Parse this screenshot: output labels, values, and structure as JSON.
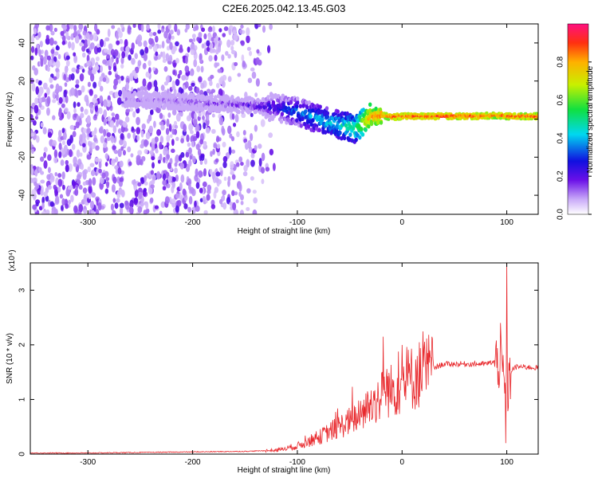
{
  "figure": {
    "title": "C2E6.2025.042.13.45.G03"
  },
  "colors": {
    "snr_line": "#e8262a",
    "spectrum_low": "#dcd0f4",
    "spectrum_mid": "#8a3cf0",
    "spectrum_core": "#1a1ad8"
  },
  "chart_data": [
    {
      "type": "heatmap",
      "xlabel": "Height of straight line (km)",
      "ylabel": "Frequency (Hz)",
      "xlim": [
        -355,
        130
      ],
      "ylim": [
        -50,
        50
      ],
      "xticks": [
        -300,
        -200,
        -100,
        0,
        100
      ],
      "yticks": [
        -40,
        -20,
        0,
        20,
        40
      ],
      "grid": false,
      "colorbar": {
        "label": "Normalized spectral amplitude",
        "range": [
          0,
          1
        ],
        "ticks": [
          "0.0",
          "0.2",
          "0.4",
          "0.6",
          "0.8"
        ],
        "colormap": "rainbow"
      },
      "ridge": {
        "x": [
          -265,
          -240,
          -200,
          -170,
          -140,
          -120,
          -100,
          -80,
          -60,
          -45,
          -38,
          -30,
          -20,
          -10,
          0,
          40,
          70,
          90,
          100,
          130
        ],
        "y": [
          10,
          10,
          9,
          8,
          7,
          6,
          4,
          0,
          -3,
          -5,
          -2,
          1,
          2,
          1,
          1.5,
          1.5,
          1.5,
          2,
          1.5,
          1.5
        ],
        "amplitude": [
          0.15,
          0.15,
          0.2,
          0.2,
          0.25,
          0.3,
          0.4,
          0.45,
          0.5,
          0.55,
          0.7,
          0.85,
          0.9,
          0.95,
          0.95,
          0.95,
          0.95,
          0.9,
          0.95,
          0.95
        ]
      },
      "noise_region_x": [
        -355,
        -120
      ]
    },
    {
      "type": "line",
      "xlabel": "Height of straight line (km)",
      "ylabel": "SNR (10 * v/v)",
      "y_multiplier": "(x10⁴)",
      "xlim": [
        -355,
        130
      ],
      "ylim": [
        0,
        3.5
      ],
      "xticks": [
        -300,
        -200,
        -100,
        0,
        100
      ],
      "yticks": [
        0,
        1,
        2,
        3
      ],
      "grid": false,
      "series": [
        {
          "x": [
            -355,
            -300,
            -250,
            -200,
            -150,
            -120,
            -100,
            -80,
            -60,
            -40,
            -30,
            -20,
            -15,
            -10,
            0,
            20,
            40,
            60,
            80,
            90,
            95,
            98,
            100,
            102,
            105,
            110,
            130
          ],
          "y": [
            0.02,
            0.02,
            0.03,
            0.04,
            0.05,
            0.07,
            0.15,
            0.3,
            0.5,
            0.7,
            0.9,
            1.05,
            1.2,
            1.15,
            1.3,
            1.5,
            1.65,
            1.65,
            1.65,
            1.7,
            1.6,
            1.2,
            1.0,
            1.3,
            1.55,
            1.6,
            1.58
          ],
          "spikes": [
            {
              "x": -18,
              "y": 2.15
            },
            {
              "x": 100,
              "y": 3.5
            },
            {
              "x": 99,
              "y": 0.2
            },
            {
              "x": 94,
              "y": 2.4
            }
          ]
        }
      ]
    }
  ]
}
